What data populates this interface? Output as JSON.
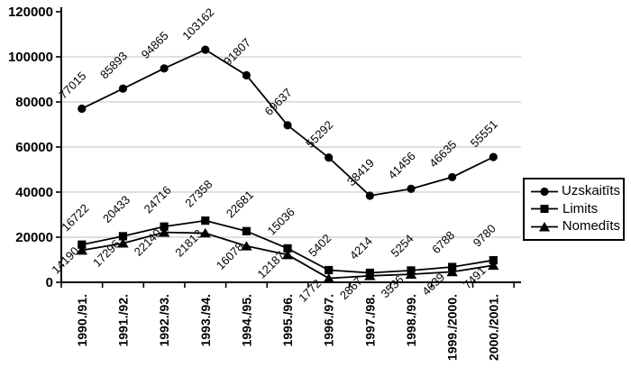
{
  "chart_data": {
    "type": "line",
    "title": "",
    "xlabel": "",
    "ylabel": "",
    "categories": [
      "1990./91.",
      "1991./92.",
      "1992./93.",
      "1993./94.",
      "1994./95.",
      "1995./96.",
      "1996./97.",
      "1997./98.",
      "1998./99.",
      "1999./2000.",
      "2000./2001."
    ],
    "series": [
      {
        "name": "Uzskaitīts",
        "marker": "circle",
        "values": [
          77015,
          85893,
          94865,
          103162,
          91807,
          69637,
          55292,
          38419,
          41456,
          46635,
          55551
        ]
      },
      {
        "name": "Limits",
        "marker": "square",
        "values": [
          16722,
          20433,
          24716,
          27358,
          22681,
          15036,
          5402,
          4214,
          5254,
          6788,
          9780
        ]
      },
      {
        "name": "Nomedīts",
        "marker": "triangle",
        "values": [
          14190,
          17296,
          22140,
          21813,
          16078,
          12187,
          1772,
          2867,
          3536,
          4639,
          7491
        ]
      }
    ],
    "ylim": [
      0,
      120000
    ],
    "yticks": [
      0,
      20000,
      40000,
      60000,
      80000,
      100000,
      120000
    ],
    "ytick_labels": [
      "0",
      "20000",
      "40000",
      "60000",
      "80000",
      "100000",
      "120000"
    ],
    "grid": true,
    "data_labels": true,
    "legend_position": "right",
    "colors": {
      "line": "#000000",
      "marker": "#000000",
      "grid": "#bfbfbf",
      "background": "#ffffff",
      "text": "#000000"
    }
  }
}
